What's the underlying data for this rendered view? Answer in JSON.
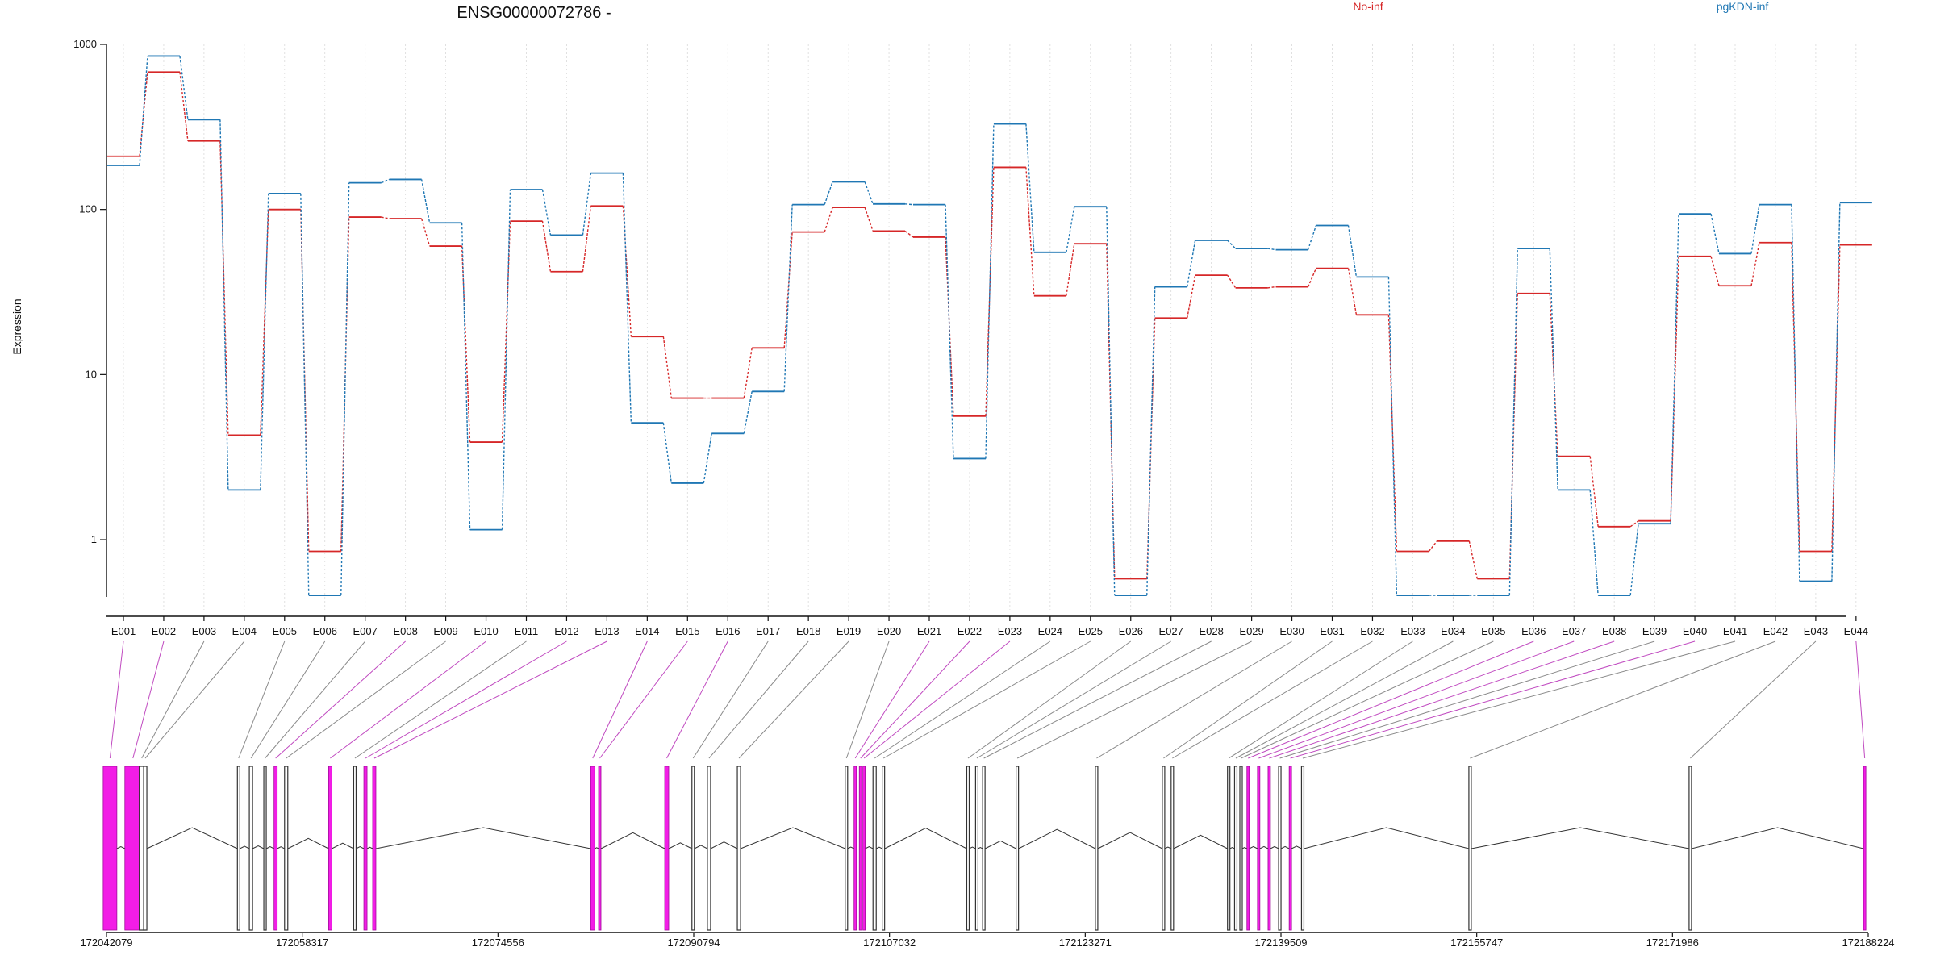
{
  "chart_data": {
    "type": "line",
    "title": "ENSG00000072786 -",
    "ylabel": "Expression",
    "yscale": "log",
    "ylim": [
      0.45,
      1000
    ],
    "y_ticks": [
      1,
      10,
      100,
      1000
    ],
    "y_tick_labels": [
      "1",
      "10",
      "100",
      "1000"
    ],
    "grid": "vertical dotted",
    "legend": "top",
    "categories": [
      "E001",
      "E002",
      "E003",
      "E004",
      "E005",
      "E006",
      "E007",
      "E008",
      "E009",
      "E010",
      "E011",
      "E012",
      "E013",
      "E014",
      "E015",
      "E016",
      "E017",
      "E018",
      "E019",
      "E020",
      "E021",
      "E022",
      "E023",
      "E024",
      "E025",
      "E026",
      "E027",
      "E028",
      "E029",
      "E030",
      "E031",
      "E032",
      "E033",
      "E034",
      "E035",
      "E036",
      "E037",
      "E038",
      "E039",
      "E040",
      "E041",
      "E042",
      "E043",
      "E044"
    ],
    "series": [
      {
        "name": "No-inf",
        "color": "#d62728",
        "values": [
          210,
          680,
          260,
          4.3,
          100,
          0.85,
          90,
          88,
          60,
          3.9,
          85,
          42,
          105,
          17,
          7.2,
          7.2,
          14.5,
          73,
          103,
          74,
          68,
          5.6,
          180,
          30,
          62,
          0.58,
          22,
          40,
          33.5,
          34,
          44,
          23,
          0.85,
          0.98,
          0.58,
          31,
          3.2,
          1.2,
          1.3,
          52,
          34.5,
          63,
          0.85,
          61
        ]
      },
      {
        "name": "pgKDN-inf",
        "color": "#1f77b4",
        "values": [
          185,
          850,
          350,
          2.0,
          125,
          0.46,
          145,
          152,
          83,
          1.15,
          132,
          70,
          166,
          5.1,
          2.2,
          4.4,
          7.9,
          107,
          147,
          108,
          107,
          3.1,
          330,
          55,
          104,
          0.46,
          34,
          65,
          58,
          57,
          80,
          39,
          0.46,
          0.46,
          0.46,
          58,
          2.0,
          0.46,
          1.25,
          94,
          54,
          107,
          0.56,
          110
        ]
      }
    ]
  },
  "gene_model": {
    "coordinate_ticks": [
      "172042079",
      "172058317",
      "172074556",
      "172090794",
      "172107032",
      "172123271",
      "172139509",
      "172155747",
      "172171986",
      "172188224"
    ],
    "exon_highlight": [
      true,
      true,
      false,
      false,
      false,
      false,
      false,
      true,
      false,
      true,
      false,
      true,
      true,
      true,
      true,
      true,
      false,
      false,
      false,
      false,
      true,
      true,
      true,
      false,
      false,
      false,
      false,
      false,
      false,
      false,
      false,
      false,
      false,
      false,
      false,
      true,
      true,
      true,
      false,
      true,
      false,
      false,
      false,
      true
    ],
    "highlight_color": "#f21de6",
    "exon_color": "#333333"
  }
}
